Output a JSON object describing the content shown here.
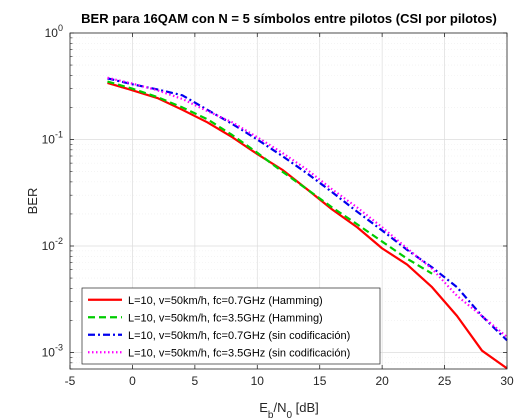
{
  "chart_data": {
    "type": "line",
    "title": "BER para 16QAM con N = 5 símbolos entre pilotos (CSI por pilotos)",
    "xlabel": "E_b/N_0 [dB]",
    "ylabel": "BER",
    "xlim": [
      -5,
      30
    ],
    "ylim": [
      0.0007,
      1
    ],
    "yscale": "log",
    "grid": true,
    "legend_position": "bottom-left",
    "xticks": [
      -5,
      0,
      5,
      10,
      15,
      20,
      25,
      30
    ],
    "xtick_labels": [
      "-5",
      "0",
      "5",
      "10",
      "15",
      "20",
      "25",
      "30"
    ],
    "yticks": [
      0.001,
      0.01,
      0.1,
      1
    ],
    "ytick_exponents": [
      "-3",
      "-2",
      "-1",
      "0"
    ],
    "ytick_base": "10",
    "series": [
      {
        "name": "L=10, v=50km/h, fc=0.7GHz (Hamming)",
        "color": "#ff0000",
        "dash": "solid",
        "x": [
          -2,
          0,
          2,
          4,
          6,
          8,
          10,
          12,
          14,
          16,
          18,
          20,
          22,
          24,
          26,
          28,
          30
        ],
        "y": [
          0.34,
          0.29,
          0.245,
          0.19,
          0.145,
          0.105,
          0.073,
          0.052,
          0.034,
          0.022,
          0.015,
          0.0095,
          0.0067,
          0.0041,
          0.0022,
          0.00104,
          0.00071
        ]
      },
      {
        "name": "L=10, v=50km/h, fc=3.5GHz (Hamming)",
        "color": "#00cc00",
        "dash": "dashed",
        "x": [
          -2,
          0,
          2,
          4,
          6,
          8,
          10,
          12,
          14,
          16,
          18,
          20,
          22,
          24
        ],
        "y": [
          0.35,
          0.3,
          0.25,
          0.2,
          0.155,
          0.11,
          0.075,
          0.05,
          0.034,
          0.023,
          0.016,
          0.011,
          0.0076,
          0.0055
        ]
      },
      {
        "name": "L=10, v=50km/h, fc=0.7GHz (sin codificación)",
        "color": "#0000ee",
        "dash": "dashdot",
        "x": [
          -2,
          0,
          2,
          4,
          6,
          8,
          10,
          12,
          14,
          16,
          18,
          20,
          22,
          24,
          26,
          28,
          30
        ],
        "y": [
          0.375,
          0.33,
          0.295,
          0.26,
          0.19,
          0.14,
          0.1,
          0.07,
          0.048,
          0.032,
          0.021,
          0.014,
          0.0092,
          0.0063,
          0.0041,
          0.0022,
          0.0013
        ]
      },
      {
        "name": "L=10, v=50km/h, fc=3.5GHz (sin codificación)",
        "color": "#ff00ff",
        "dash": "dotted",
        "x": [
          -2,
          0,
          2,
          4,
          6,
          8,
          10,
          12,
          14,
          16,
          18,
          20,
          22,
          24,
          26,
          28,
          30
        ],
        "y": [
          0.38,
          0.335,
          0.29,
          0.24,
          0.185,
          0.145,
          0.105,
          0.075,
          0.052,
          0.034,
          0.023,
          0.015,
          0.0095,
          0.0061,
          0.0034,
          0.0022,
          0.0014
        ]
      }
    ]
  }
}
